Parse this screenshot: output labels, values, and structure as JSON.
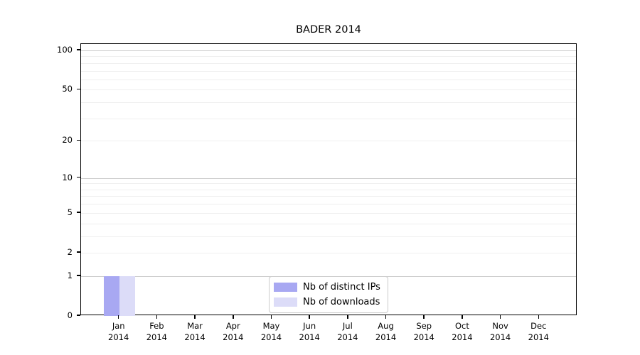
{
  "chart_data": {
    "type": "bar",
    "title": "BADER 2014",
    "x_year": "2014",
    "categories": [
      "Jan",
      "Feb",
      "Mar",
      "Apr",
      "May",
      "Jun",
      "Jul",
      "Aug",
      "Sep",
      "Oct",
      "Nov",
      "Dec"
    ],
    "series": [
      {
        "name": "Nb of distinct IPs",
        "color": "#a8a8f2",
        "values": [
          1,
          0,
          0,
          0,
          0,
          0,
          0,
          0,
          0,
          0,
          0,
          0
        ]
      },
      {
        "name": "Nb of downloads",
        "color": "#dcdcf8",
        "values": [
          1,
          0,
          0,
          0,
          0,
          0,
          0,
          0,
          0,
          0,
          0,
          0
        ]
      }
    ],
    "y_axis": {
      "scale": "log10(value+1)",
      "ticks": [
        0,
        1,
        2,
        5,
        10,
        20,
        50,
        100
      ],
      "major_gridlines": [
        1,
        10,
        100
      ],
      "minor_gridlines": [
        2,
        3,
        4,
        5,
        6,
        7,
        8,
        9,
        20,
        30,
        40,
        50,
        60,
        70,
        80,
        90
      ],
      "range": [
        0,
        100
      ]
    },
    "legend": {
      "position": "bottom-center",
      "entries": [
        "Nb of distinct IPs",
        "Nb of downloads"
      ]
    },
    "colors": {
      "major_grid": "#cccccc",
      "minor_grid": "#efefef",
      "axis": "#000000"
    }
  }
}
